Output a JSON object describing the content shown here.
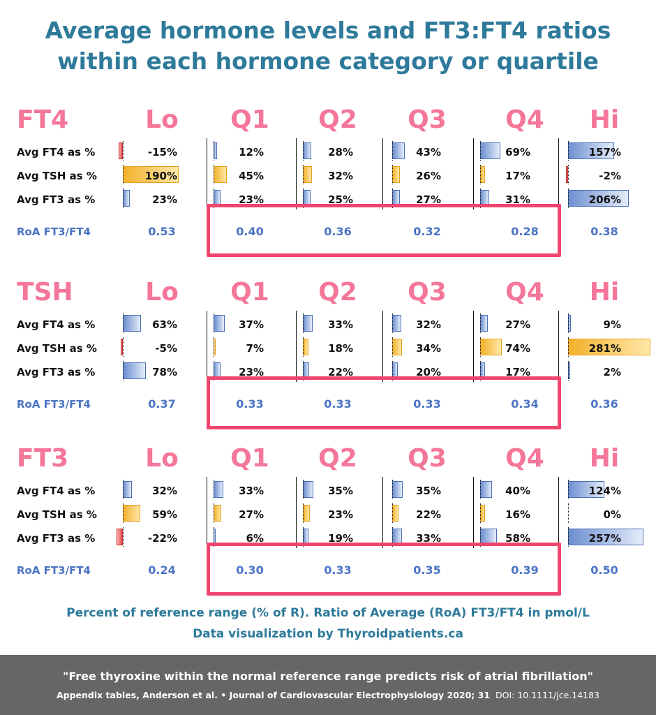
{
  "title": {
    "line1": "Average hormone levels and FT3:FT4 ratios",
    "line2": "within each hormone category or quartile"
  },
  "columns": [
    "Lo",
    "Q1",
    "Q2",
    "Q3",
    "Q4",
    "Hi"
  ],
  "row_labels": {
    "ft4": "Avg FT4 as %",
    "tsh": "Avg TSH as %",
    "ft3": "Avg FT3 as %",
    "roa": "RoA FT3/FT4"
  },
  "chart_data": [
    {
      "type": "bar",
      "title": "FT4",
      "categories": [
        "Lo",
        "Q1",
        "Q2",
        "Q3",
        "Q4",
        "Hi"
      ],
      "series": [
        {
          "name": "Avg FT4 as %",
          "values": [
            -15,
            12,
            28,
            43,
            69,
            157
          ],
          "labels": [
            "-15%",
            "12%",
            "28%",
            "43%",
            "69%",
            "157%"
          ]
        },
        {
          "name": "Avg TSH as %",
          "values": [
            190,
            45,
            32,
            26,
            17,
            -2
          ],
          "labels": [
            "190%",
            "45%",
            "32%",
            "26%",
            "17%",
            "-2%"
          ]
        },
        {
          "name": "Avg FT3 as %",
          "values": [
            23,
            23,
            25,
            27,
            31,
            206
          ],
          "labels": [
            "23%",
            "23%",
            "25%",
            "27%",
            "31%",
            "206%"
          ]
        }
      ],
      "roa": [
        "0.53",
        "0.40",
        "0.36",
        "0.32",
        "0.28",
        "0.38"
      ]
    },
    {
      "type": "bar",
      "title": "TSH",
      "categories": [
        "Lo",
        "Q1",
        "Q2",
        "Q3",
        "Q4",
        "Hi"
      ],
      "series": [
        {
          "name": "Avg FT4 as %",
          "values": [
            63,
            37,
            33,
            32,
            27,
            9
          ],
          "labels": [
            "63%",
            "37%",
            "33%",
            "32%",
            "27%",
            "9%"
          ]
        },
        {
          "name": "Avg TSH as %",
          "values": [
            -5,
            7,
            18,
            34,
            74,
            281
          ],
          "labels": [
            "-5%",
            "7%",
            "18%",
            "34%",
            "74%",
            "281%"
          ]
        },
        {
          "name": "Avg FT3 as %",
          "values": [
            78,
            23,
            22,
            20,
            17,
            2
          ],
          "labels": [
            "78%",
            "23%",
            "22%",
            "20%",
            "17%",
            "2%"
          ]
        }
      ],
      "roa": [
        "0.37",
        "0.33",
        "0.33",
        "0.33",
        "0.34",
        "0.36"
      ]
    },
    {
      "type": "bar",
      "title": "FT3",
      "categories": [
        "Lo",
        "Q1",
        "Q2",
        "Q3",
        "Q4",
        "Hi"
      ],
      "series": [
        {
          "name": "Avg FT4 as %",
          "values": [
            32,
            33,
            35,
            35,
            40,
            124
          ],
          "labels": [
            "32%",
            "33%",
            "35%",
            "35%",
            "40%",
            "124%"
          ]
        },
        {
          "name": "Avg TSH as %",
          "values": [
            59,
            27,
            23,
            22,
            16,
            0
          ],
          "labels": [
            "59%",
            "27%",
            "23%",
            "22%",
            "16%",
            "0%"
          ]
        },
        {
          "name": "Avg FT3 as %",
          "values": [
            -22,
            6,
            19,
            33,
            58,
            257
          ],
          "labels": [
            "-22%",
            "6%",
            "19%",
            "33%",
            "58%",
            "257%"
          ]
        }
      ],
      "roa": [
        "0.24",
        "0.30",
        "0.33",
        "0.35",
        "0.39",
        "0.50"
      ]
    }
  ],
  "footer": {
    "line1": "Percent of reference range (% of R).  Ratio of Average (RoA) FT3/FT4 in pmol/L",
    "line2": "Data visualization by Thyroidpatients.ca"
  },
  "banner": {
    "quote": "\"Free thyroxine within the normal reference range predicts risk of atrial fibrillation\"",
    "cite_bold": "Appendix tables, Anderson et al. • Journal of Cardiovascular Electrophysiology 2020; 31",
    "cite_doi": "DOI: 10.1111/jce.14183"
  },
  "colors": {
    "title": "#2e7a9a",
    "category": "#f4779a",
    "roa": "#4b74c4",
    "ft_bar": "#6d8fd0",
    "tsh_bar": "#f2b12b",
    "negative_bar": "#e04848",
    "highlight_box": "#f0456f",
    "banner": "#666666"
  }
}
